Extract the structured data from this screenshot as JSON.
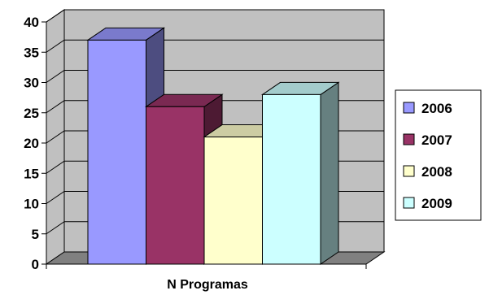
{
  "chart_data": {
    "type": "bar",
    "title": "",
    "xlabel": "N Programas",
    "ylabel": "",
    "categories": [
      "N Programas"
    ],
    "series": [
      {
        "name": "2006",
        "values": [
          37
        ],
        "color": "#9999ff"
      },
      {
        "name": "2007",
        "values": [
          26
        ],
        "color": "#993366"
      },
      {
        "name": "2008",
        "values": [
          21
        ],
        "color": "#ffffcc"
      },
      {
        "name": "2009",
        "values": [
          28
        ],
        "color": "#ccffff"
      }
    ],
    "ylim": [
      0,
      40
    ],
    "yticks": [
      "0",
      "5",
      "10",
      "15",
      "20",
      "25",
      "30",
      "35",
      "40"
    ],
    "grid": true,
    "legend_position": "right",
    "style": "3d-clustered-column"
  }
}
